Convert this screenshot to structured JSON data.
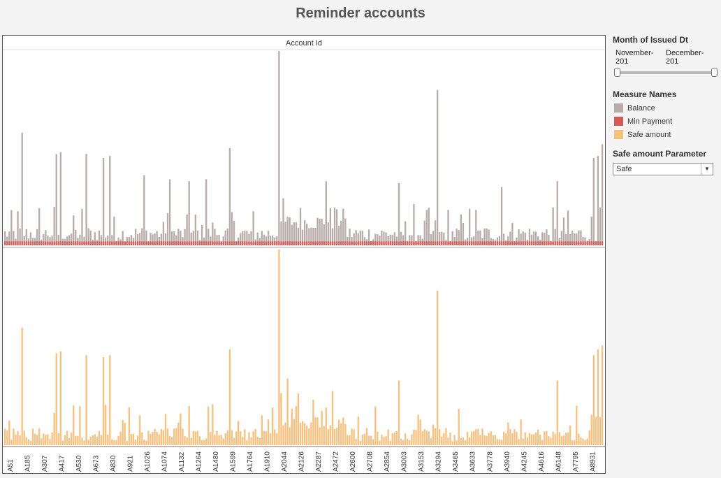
{
  "title": "Reminder accounts",
  "colors": {
    "balance": "#b8aca9",
    "min_payment": "#d45a5a",
    "safe_amount": "#f6c07e"
  },
  "filters": {
    "month_heading": "Month of Issued Dt",
    "range_start": "November-201",
    "range_end": "December-201"
  },
  "legend": {
    "heading": "Measure Names",
    "items": [
      {
        "label": "Balance",
        "color": "#b8aca9"
      },
      {
        "label": "Min Payment",
        "color": "#d45a5a"
      },
      {
        "label": "Safe amount",
        "color": "#f6c07e"
      }
    ]
  },
  "parameter": {
    "heading": "Safe amount Parameter",
    "value": "Safe"
  },
  "chart_data": {
    "type": "bar",
    "xlabel": "Account Id",
    "ylabel": "",
    "x_tick_labels": [
      "A51",
      "A185",
      "A307",
      "A417",
      "A530",
      "A673",
      "A830",
      "A921",
      "A1026",
      "A1074",
      "A1132",
      "A1264",
      "A1480",
      "A1599",
      "A1764",
      "A1910",
      "A2044",
      "A2126",
      "A2287",
      "A2472",
      "A2600",
      "A2708",
      "A2854",
      "A3003",
      "A3153",
      "A3294",
      "A3465",
      "A3633",
      "A3778",
      "A3940",
      "A4245",
      "A4616",
      "A6148",
      "A7795",
      "A8931"
    ],
    "bar_count": 280,
    "ylim": [
      0,
      100
    ],
    "series": [
      {
        "name": "Balance",
        "panel": "top",
        "peaks": [
          {
            "index": 8,
            "value": 58
          },
          {
            "index": 24,
            "value": 47
          },
          {
            "index": 26,
            "value": 48
          },
          {
            "index": 38,
            "value": 47
          },
          {
            "index": 46,
            "value": 45
          },
          {
            "index": 49,
            "value": 46
          },
          {
            "index": 65,
            "value": 36
          },
          {
            "index": 77,
            "value": 34
          },
          {
            "index": 86,
            "value": 33
          },
          {
            "index": 94,
            "value": 34
          },
          {
            "index": 105,
            "value": 50
          },
          {
            "index": 128,
            "value": 100
          },
          {
            "index": 150,
            "value": 33
          },
          {
            "index": 184,
            "value": 32
          },
          {
            "index": 202,
            "value": 80
          },
          {
            "index": 232,
            "value": 30
          },
          {
            "index": 258,
            "value": 33
          },
          {
            "index": 275,
            "value": 45
          },
          {
            "index": 277,
            "value": 46
          },
          {
            "index": 279,
            "value": 52
          }
        ]
      },
      {
        "name": "Min Payment",
        "panel": "top",
        "note_value": 2
      },
      {
        "name": "Safe amount",
        "panel": "bottom",
        "peaks": [
          {
            "index": 8,
            "value": 60
          },
          {
            "index": 24,
            "value": 47
          },
          {
            "index": 26,
            "value": 48
          },
          {
            "index": 38,
            "value": 46
          },
          {
            "index": 46,
            "value": 45
          },
          {
            "index": 49,
            "value": 46
          },
          {
            "index": 105,
            "value": 49
          },
          {
            "index": 128,
            "value": 100
          },
          {
            "index": 132,
            "value": 34
          },
          {
            "index": 184,
            "value": 33
          },
          {
            "index": 202,
            "value": 79
          },
          {
            "index": 258,
            "value": 33
          },
          {
            "index": 275,
            "value": 46
          },
          {
            "index": 277,
            "value": 49
          },
          {
            "index": 279,
            "value": 51
          }
        ]
      }
    ]
  }
}
